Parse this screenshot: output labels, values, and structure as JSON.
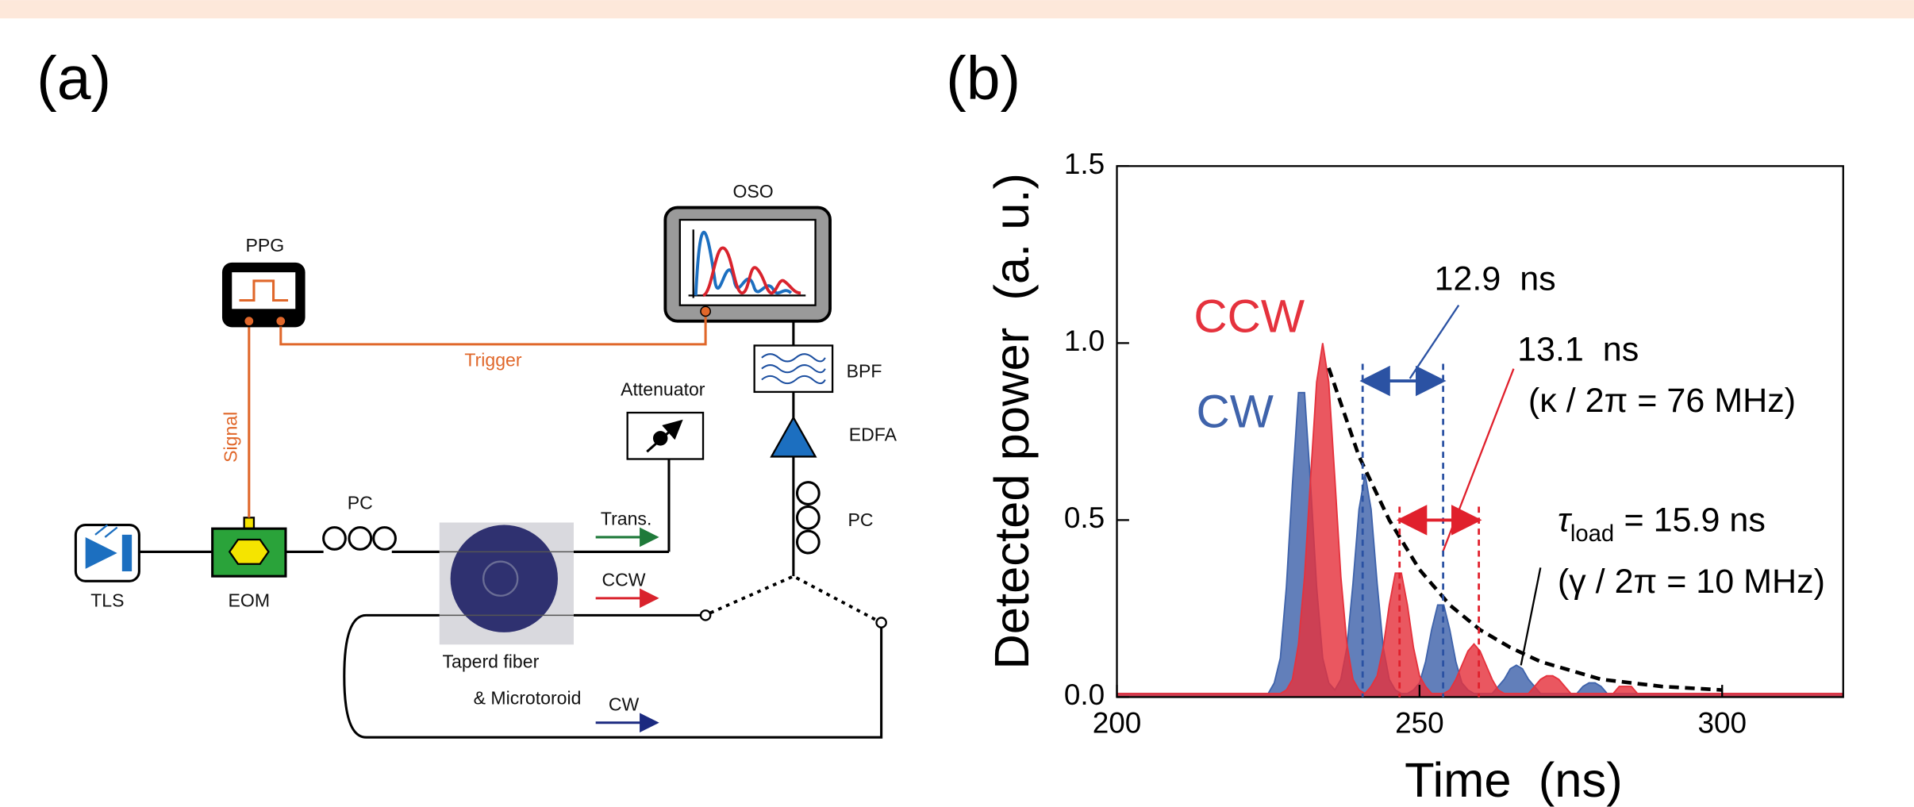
{
  "diagram": {
    "panel_label": "(a)",
    "ppg": "PPG",
    "oso": "OSO",
    "trigger": "Trigger",
    "signal": "Signal",
    "attenuator": "Attenuator",
    "bpf": "BPF",
    "edfa": "EDFA",
    "pc_1": "PC",
    "pc_2": "PC",
    "trans": "Trans.",
    "ccw": "CCW",
    "cw": "CW",
    "tls": "TLS",
    "eom": "EOM",
    "fiber_1": "Taperd fiber",
    "fiber_2": "& Microtoroid"
  },
  "chart_data": {
    "type": "area",
    "panel_label": "(b)",
    "xlabel": "Time  (ns)",
    "ylabel": "Detected power  (a. u.)",
    "xlim": [
      200,
      320
    ],
    "ylim": [
      0,
      1.5
    ],
    "xticks": [
      200,
      250,
      300
    ],
    "yticks": [
      {
        "value": 0,
        "label": "0.0"
      },
      0.5,
      {
        "value": 1,
        "label": "1.0"
      },
      1.5
    ],
    "grid": false,
    "x": [
      200,
      210,
      220,
      222,
      223,
      224,
      225,
      226,
      227,
      228,
      229,
      230,
      231,
      232,
      233,
      234,
      235,
      236,
      237,
      238,
      239,
      240,
      241,
      242,
      243,
      244,
      245,
      246,
      247,
      248,
      249,
      250,
      251,
      252,
      253,
      254,
      255,
      256,
      257,
      258,
      259,
      260,
      261,
      262,
      263,
      264,
      265,
      266,
      267,
      268,
      269,
      270,
      271,
      272,
      273,
      274,
      275,
      276,
      277,
      278,
      279,
      280,
      281,
      282,
      283,
      284,
      285,
      286,
      287,
      288,
      289,
      290,
      291,
      292,
      300,
      310,
      320
    ],
    "series": [
      {
        "name": "CW",
        "color": "#3f63ab",
        "values": [
          0.01,
          0.01,
          0.01,
          0.01,
          0.01,
          0.01,
          0.01,
          0.04,
          0.11,
          0.31,
          0.6,
          0.86,
          0.86,
          0.6,
          0.31,
          0.11,
          0.04,
          0.02,
          0.05,
          0.14,
          0.32,
          0.53,
          0.63,
          0.53,
          0.32,
          0.14,
          0.05,
          0.02,
          0.01,
          0.01,
          0.02,
          0.04,
          0.1,
          0.19,
          0.26,
          0.26,
          0.19,
          0.1,
          0.04,
          0.02,
          0.01,
          0.01,
          0.01,
          0.01,
          0.03,
          0.05,
          0.08,
          0.09,
          0.08,
          0.05,
          0.03,
          0.01,
          0.01,
          0.01,
          0.01,
          0.01,
          0.01,
          0.01,
          0.03,
          0.04,
          0.04,
          0.03,
          0.01,
          0.01,
          0.01,
          0.01,
          0.01,
          0.01,
          0.01,
          0.01,
          0.01,
          0.01,
          0.01,
          0.01,
          0.01,
          0.01,
          0.01
        ]
      },
      {
        "name": "CCW",
        "color": "#e5323d",
        "values": [
          0.01,
          0.01,
          0.01,
          0.01,
          0.01,
          0.01,
          0.01,
          0.01,
          0.01,
          0.02,
          0.05,
          0.15,
          0.34,
          0.62,
          0.89,
          1.0,
          0.89,
          0.62,
          0.34,
          0.15,
          0.05,
          0.02,
          0.01,
          0.03,
          0.06,
          0.14,
          0.26,
          0.35,
          0.35,
          0.26,
          0.14,
          0.06,
          0.03,
          0.01,
          0.01,
          0.01,
          0.02,
          0.05,
          0.09,
          0.13,
          0.15,
          0.13,
          0.09,
          0.05,
          0.02,
          0.01,
          0.01,
          0.01,
          0.01,
          0.01,
          0.03,
          0.05,
          0.06,
          0.06,
          0.05,
          0.03,
          0.01,
          0.01,
          0.01,
          0.01,
          0.01,
          0.01,
          0.01,
          0.01,
          0.03,
          0.03,
          0.03,
          0.01,
          0.01,
          0.01,
          0.01,
          0.01,
          0.01,
          0.01,
          0.01,
          0.01,
          0.01
        ]
      }
    ],
    "fit": {
      "color": "#000000",
      "x": [
        235,
        240,
        245,
        250,
        255,
        260,
        265,
        270,
        280,
        290,
        300
      ],
      "values": [
        0.93,
        0.68,
        0.5,
        0.36,
        0.26,
        0.19,
        0.14,
        0.1,
        0.05,
        0.03,
        0.02
      ]
    },
    "intervals": [
      {
        "label": "12.9  ns",
        "color": "#2b52a3",
        "x": [
          240.6,
          253.9
        ]
      },
      {
        "label": "13.1  ns",
        "color": "#e0202c",
        "x": [
          246.7,
          259.8
        ]
      }
    ],
    "annotations": {
      "kappa": "(κ / 2π = 76 MHz)",
      "tau_symbol": "τ",
      "tau_sub": "load",
      "tau_text": "= 15.9 ns",
      "gamma": "(γ / 2π = 10 MHz)"
    }
  }
}
